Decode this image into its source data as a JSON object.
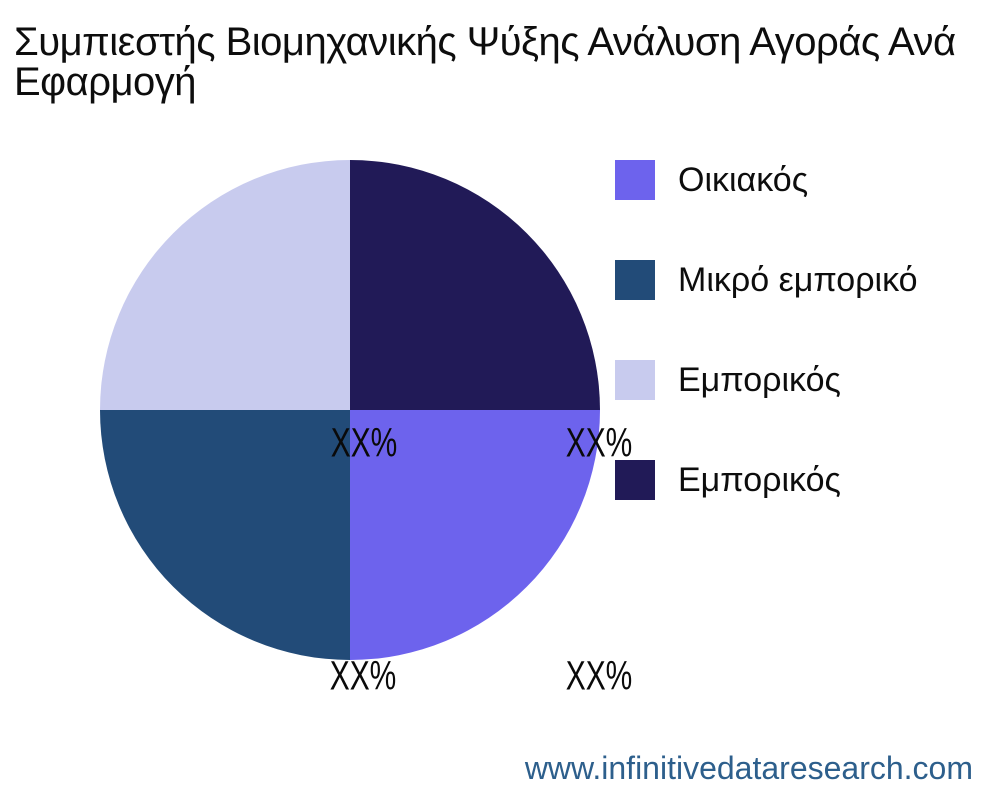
{
  "title": {
    "full": "Συμπιεστής Βιομηχανικής Ψύξης Ανάλυση Αγοράς Ανά Εφαρμογή",
    "line1": "Συμπιεστής Βιομηχανικής Ψύξης Ανάλυση Αγοράς Ανά",
    "line2": "Εφαρμογή"
  },
  "footer": {
    "website": "www.infinitivedataresearch.com",
    "color": "#2d5f8c"
  },
  "colors": {
    "background": "#ffffff",
    "text": "#0d0d0d"
  },
  "chart_data": {
    "type": "pie",
    "title": "Συμπιεστής Βιομηχανικής Ψύξης Ανάλυση Αγοράς Ανά Εφαρμογή",
    "start_angle_deg": 90,
    "direction": "clockwise",
    "legend_position": "right",
    "segments": [
      {
        "label": "Οικιακός",
        "value": 25,
        "pct_label": "XX%",
        "color": "#6d63ed",
        "quadrant": "bottom-right"
      },
      {
        "label": "Μικρό εμπορικό",
        "value": 25,
        "pct_label": "XX%",
        "color": "#224b78",
        "quadrant": "bottom-left"
      },
      {
        "label": "Εμπορικός",
        "value": 25,
        "pct_label": "XX%",
        "color": "#c8cbee",
        "quadrant": "top-left"
      },
      {
        "label": "Εμπορικός",
        "value": 25,
        "pct_label": "XX%",
        "color": "#211a57",
        "quadrant": "top-right"
      }
    ]
  }
}
